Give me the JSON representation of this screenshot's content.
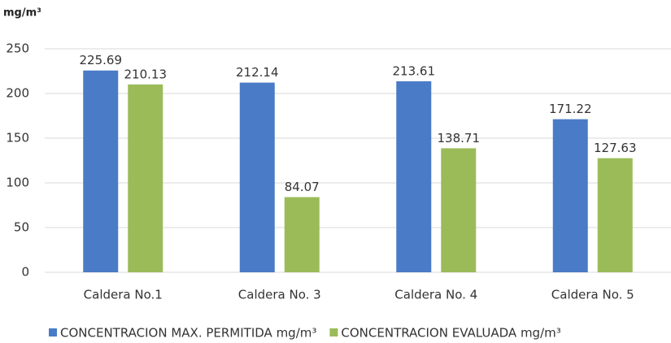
{
  "chart_data": {
    "type": "bar",
    "y_label": "mg/m³",
    "categories": [
      "Caldera No.1",
      "Caldera No. 3",
      "Caldera No. 4",
      "Caldera No. 5"
    ],
    "series": [
      {
        "name": "CONCENTRACION MAX. PERMITIDA mg/m³",
        "color": "#4a7bc6",
        "values": [
          225.69,
          212.14,
          213.61,
          171.22
        ]
      },
      {
        "name": "CONCENTRACION EVALUADA mg/m³",
        "color": "#9bbb59",
        "values": [
          210.13,
          84.07,
          138.71,
          127.63
        ]
      }
    ],
    "ylim": [
      0,
      250
    ],
    "yticks": [
      0,
      50,
      100,
      150,
      200,
      250
    ],
    "grid": true,
    "legend": "bottom"
  }
}
